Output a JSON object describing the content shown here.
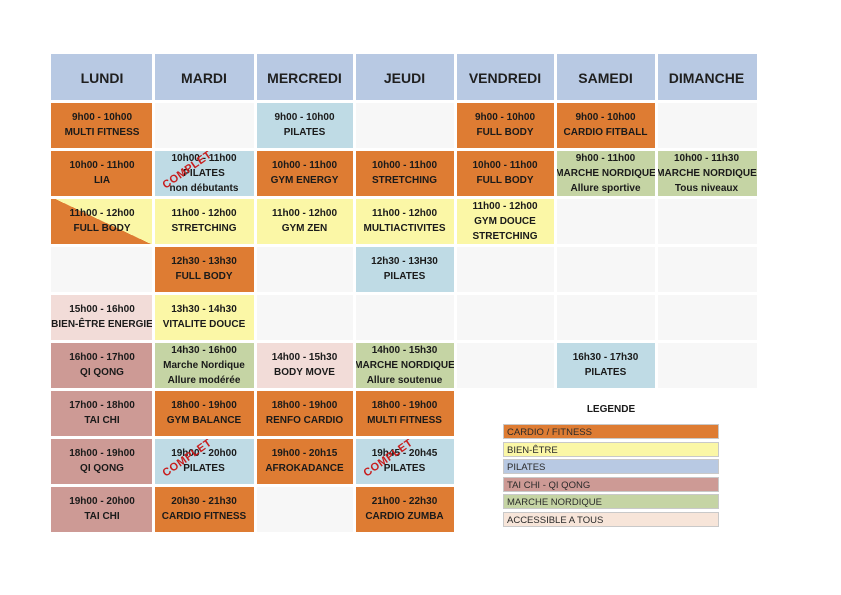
{
  "days": [
    "LUNDI",
    "MARDI",
    "MERCREDI",
    "JEUDI",
    "VENDREDI",
    "SAMEDI",
    "DIMANCHE"
  ],
  "cells": {
    "lun_1": {
      "time": "9h00 - 10h00",
      "name": "MULTI FITNESS",
      "cat": "cardio"
    },
    "mer_1": {
      "time": "9h00 - 10h00",
      "name": "PILATES",
      "cat": "pilates"
    },
    "ven_1": {
      "time": "9h00 - 10h00",
      "name": "FULL BODY",
      "cat": "cardio"
    },
    "sam_1": {
      "time": "9h00 - 10h00",
      "name": "CARDIO FITBALL",
      "cat": "cardio"
    },
    "lun_2": {
      "time": "10h00 - 11h00",
      "name": "LIA",
      "cat": "cardio"
    },
    "mar_2": {
      "time": "10h00 - 11h00",
      "name": "PILATES",
      "extra": "non débutants",
      "cat": "pilates",
      "stamp": "COMPLET"
    },
    "mer_2": {
      "time": "10h00 - 11h00",
      "name": "GYM ENERGY",
      "cat": "cardio"
    },
    "jeu_2": {
      "time": "10h00 - 11h00",
      "name": "STRETCHING",
      "cat": "cardio"
    },
    "ven_2": {
      "time": "10h00 - 11h00",
      "name": "FULL BODY",
      "cat": "cardio"
    },
    "sam_2": {
      "time": "9h00 - 11h00",
      "name": "MARCHE NORDIQUE",
      "extra": "Allure sportive",
      "cat": "marche"
    },
    "dim_2": {
      "time": "10h00 - 11h30",
      "name": "MARCHE NORDIQUE",
      "extra": "Tous niveaux",
      "cat": "marche"
    },
    "lun_3": {
      "time": "11h00 - 12h00",
      "name": "FULL BODY",
      "cat": "split"
    },
    "mar_3": {
      "time": "11h00 - 12h00",
      "name": "STRETCHING",
      "cat": "bien"
    },
    "mer_3": {
      "time": "11h00 - 12h00",
      "name": "GYM ZEN",
      "cat": "bien"
    },
    "jeu_3": {
      "time": "11h00 - 12h00",
      "name": "MULTIACTIVITES",
      "cat": "bien"
    },
    "ven_3": {
      "time": "11h00 - 12h00",
      "name": "GYM DOUCE",
      "extra": "STRETCHING",
      "cat": "bien"
    },
    "mar_4": {
      "time": "12h30 - 13h30",
      "name": "FULL BODY",
      "cat": "cardio"
    },
    "jeu_4": {
      "time": "12h30 - 13H30",
      "name": "PILATES",
      "cat": "pilates"
    },
    "lun_5": {
      "time": "15h00 - 16h00",
      "name": "BIEN-ÊTRE ENERGIE",
      "cat": "access"
    },
    "mar_5": {
      "time": "13h30 - 14h30",
      "name": "VITALITE DOUCE",
      "cat": "bien"
    },
    "lun_6": {
      "time": "16h00 - 17h00",
      "name": "QI QONG",
      "cat": "tai"
    },
    "mar_6": {
      "time": "14h30 - 16h00",
      "name": "Marche Nordique",
      "extra": "Allure modérée",
      "cat": "marche"
    },
    "mer_6": {
      "time": "14h00 - 15h30",
      "name": "BODY MOVE",
      "cat": "access"
    },
    "jeu_6": {
      "time": "14h00 - 15h30",
      "name": "MARCHE NORDIQUE",
      "extra": "Allure soutenue",
      "cat": "marche"
    },
    "sam_6": {
      "time": "16h30 - 17h30",
      "name": "PILATES",
      "cat": "pilates"
    },
    "lun_7": {
      "time": "17h00 - 18h00",
      "name": "TAI CHI",
      "cat": "tai"
    },
    "mar_7": {
      "time": "18h00 - 19h00",
      "name": "GYM BALANCE",
      "cat": "cardio"
    },
    "mer_7": {
      "time": "18h00 - 19h00",
      "name": "RENFO CARDIO",
      "cat": "cardio"
    },
    "jeu_7": {
      "time": "18h00 - 19h00",
      "name": "MULTI FITNESS",
      "cat": "cardio"
    },
    "lun_8": {
      "time": "18h00 - 19h00",
      "name": "QI QONG",
      "cat": "tai"
    },
    "mar_8": {
      "time": "19h00 - 20h00",
      "name": "PILATES",
      "cat": "pilates",
      "stamp": "COMPLET"
    },
    "mer_8": {
      "time": "19h00 - 20h15",
      "name": "AFROKADANCE",
      "cat": "cardio"
    },
    "jeu_8": {
      "time": "19h45 - 20h45",
      "name": "PILATES",
      "cat": "pilates",
      "stamp": "COMPLET"
    },
    "lun_9": {
      "time": "19h00 - 20h00",
      "name": "TAI CHI",
      "cat": "tai"
    },
    "mar_9": {
      "time": "20h30 - 21h30",
      "name": "CARDIO FITNESS",
      "cat": "cardio"
    },
    "jeu_9": {
      "time": "21h00 - 22h30",
      "name": "CARDIO ZUMBA",
      "cat": "cardio"
    }
  },
  "legend": {
    "title": "LEGENDE",
    "items": [
      {
        "label": "CARDIO / FITNESS",
        "color": "#de7c33"
      },
      {
        "label": "BIEN-ÊTRE",
        "color": "#fbf7a6"
      },
      {
        "label": "PILATES",
        "color": "#b8c9e3"
      },
      {
        "label": "TAI CHI - QI QONG",
        "color": "#cd9a95"
      },
      {
        "label": "MARCHE NORDIQUE",
        "color": "#c5d4a4"
      },
      {
        "label": "ACCESSIBLE A TOUS",
        "color": "#f7e5d9"
      }
    ]
  },
  "colors": {
    "header": "#b8c9e3",
    "cardio": "#de7c33",
    "bien": "#fbf7a6",
    "pilates": "#bfdbe5",
    "tai": "#cd9a95",
    "marche": "#c5d4a4",
    "access": "#f2dcd8",
    "stamp": "#c81d1d"
  }
}
